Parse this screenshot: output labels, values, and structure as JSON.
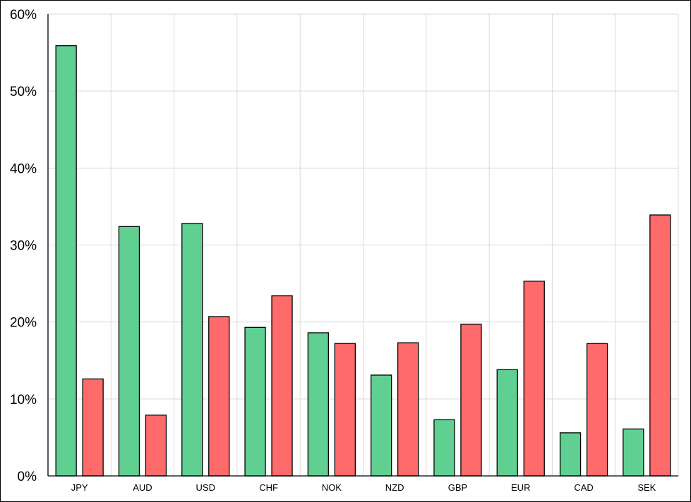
{
  "chart_data": {
    "type": "bar",
    "categories": [
      "JPY",
      "AUD",
      "USD",
      "CHF",
      "NOK",
      "NZD",
      "GBP",
      "EUR",
      "CAD",
      "SEK"
    ],
    "series": [
      {
        "color": "#5fd092",
        "values": [
          55.9,
          32.4,
          32.8,
          19.3,
          18.6,
          13.1,
          7.3,
          13.8,
          5.6,
          6.1
        ]
      },
      {
        "color": "#ff6b6b",
        "values": [
          12.6,
          7.9,
          20.7,
          23.4,
          17.2,
          17.3,
          19.7,
          25.3,
          17.2,
          33.9
        ]
      }
    ],
    "ylim": [
      0,
      60
    ],
    "yticks": [
      "0%",
      "10%",
      "20%",
      "30%",
      "40%",
      "50%",
      "60%"
    ],
    "ytick_values": [
      0,
      10,
      20,
      30,
      40,
      50,
      60
    ],
    "grid": true,
    "gridline_color": "#d9d9d9",
    "bar_outline_color": "#000000",
    "title": "",
    "xlabel": "",
    "ylabel": ""
  }
}
